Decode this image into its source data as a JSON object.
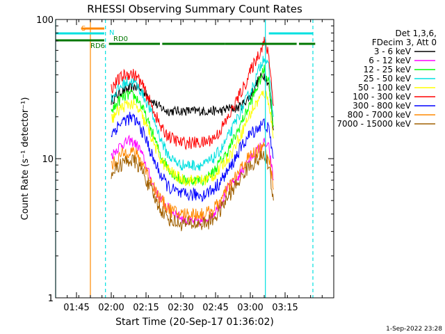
{
  "chart_data": {
    "type": "line",
    "title": "RHESSI Observing Summary Count Rates",
    "xlabel": "Start Time (20-Sep-17 01:36:02)",
    "ylabel": "Count Rate (s⁻¹ detector⁻¹)",
    "y_scale": "log",
    "ylim": [
      1,
      100
    ],
    "xlim_minutes": [
      0,
      120
    ],
    "y_ticks": [
      "1",
      "10",
      "100"
    ],
    "x_ticks": [
      {
        "label": "01:45",
        "minute": 9
      },
      {
        "label": "02:00",
        "minute": 24
      },
      {
        "label": "02:15",
        "minute": 39
      },
      {
        "label": "02:30",
        "minute": 54
      },
      {
        "label": "02:45",
        "minute": 69
      },
      {
        "label": "03:00",
        "minute": 84
      },
      {
        "label": "03:15",
        "minute": 99
      }
    ],
    "legend": {
      "header": [
        "Det 1,3,6,",
        "FDecim 3, Att 0"
      ],
      "placement": "right"
    },
    "flags": [
      {
        "label": "S",
        "color": "#ff8800",
        "start_min": 11,
        "end_min": 21
      },
      {
        "label": "N",
        "color": "#00e0e0",
        "start_min": 0,
        "end_min": 21
      },
      {
        "label": "N",
        "color": "#00e0e0",
        "start_min": 92,
        "end_min": 111
      },
      {
        "label": "RD0",
        "color": "#007700",
        "start_min": 23,
        "end_min": 45
      },
      {
        "label": "RD0",
        "color": "#007700",
        "start_min": 46,
        "end_min": 73
      },
      {
        "label": "RD0",
        "color": "#007700",
        "start_min": 73,
        "end_min": 104
      },
      {
        "label": "RD0",
        "color": "#007700",
        "start_min": 105,
        "end_min": 112
      },
      {
        "label": "RD6",
        "color": "#007700",
        "start_min": 0,
        "end_min": 21
      }
    ],
    "flag_labels": [
      {
        "text": "S",
        "color": "#ff8800"
      },
      {
        "text": "N",
        "color": "#00e0e0"
      },
      {
        "text": "RD0",
        "color": "#007700"
      },
      {
        "text": "RD6",
        "color": "#007700"
      }
    ],
    "vlines": [
      {
        "minute": 15,
        "color": "#ff8800",
        "style": "solid"
      },
      {
        "minute": 21.5,
        "color": "#00e0e0",
        "style": "dashed"
      },
      {
        "minute": 90.5,
        "color": "#00e0e0",
        "style": "solid"
      },
      {
        "minute": 111,
        "color": "#00e0e0",
        "style": "dashed"
      },
      {
        "minute": 0,
        "color": "#00e0e0",
        "style": "solid"
      }
    ],
    "x_minutes": [
      24,
      26,
      28,
      30,
      32,
      34,
      36,
      38,
      40,
      42,
      44,
      46,
      48,
      50,
      52,
      54,
      56,
      58,
      60,
      62,
      64,
      66,
      68,
      70,
      72,
      74,
      76,
      78,
      80,
      82,
      84,
      86,
      88,
      90,
      92,
      94
    ],
    "series": [
      {
        "name": "3 - 6 keV",
        "color": "#000000",
        "values": [
          26,
          28,
          30,
          31,
          32,
          33,
          32,
          30,
          28,
          26,
          24,
          23,
          22,
          22,
          22,
          22,
          22,
          22,
          22,
          22,
          22,
          22,
          22,
          22,
          22,
          23,
          23,
          23,
          24,
          26,
          28,
          33,
          38,
          40,
          34,
          16
        ]
      },
      {
        "name": "6 - 12 keV",
        "color": "#ff00ff",
        "values": [
          10.5,
          11.5,
          12.5,
          13,
          13.5,
          13,
          12,
          10,
          8,
          6.5,
          5.5,
          5,
          4.5,
          4.2,
          4,
          3.8,
          3.6,
          3.5,
          3.5,
          3.5,
          3.6,
          3.8,
          4,
          4.5,
          5,
          6,
          6.5,
          7,
          8,
          9,
          10,
          11,
          12,
          13,
          12,
          7
        ]
      },
      {
        "name": "12 - 25 keV",
        "color": "#00ff00",
        "values": [
          22,
          24,
          27,
          28,
          29,
          28,
          26,
          22,
          18,
          15,
          12,
          10,
          9,
          8,
          7.5,
          7,
          7,
          7,
          7,
          7,
          7,
          7.5,
          8,
          9,
          10,
          11,
          13,
          15,
          18,
          21,
          25,
          30,
          36,
          44,
          36,
          17
        ]
      },
      {
        "name": "25 - 50 keV",
        "color": "#00e0e0",
        "values": [
          27,
          30,
          33,
          35,
          36,
          35,
          32,
          28,
          24,
          20,
          16,
          13,
          11,
          10,
          9.5,
          9,
          9,
          9,
          9,
          9,
          9,
          9.5,
          10,
          11,
          12,
          14,
          16,
          19,
          22,
          26,
          30,
          36,
          45,
          55,
          44,
          20
        ]
      },
      {
        "name": "50 - 100 keV",
        "color": "#ffff00",
        "values": [
          19,
          21,
          23,
          24,
          25,
          24,
          22,
          19,
          16,
          13.5,
          11,
          9.5,
          8.5,
          8,
          7.5,
          7.2,
          7,
          7,
          7,
          7,
          7,
          7.2,
          7.5,
          8,
          9,
          10,
          11,
          13,
          15,
          18,
          21,
          24,
          27,
          30,
          26,
          14
        ]
      },
      {
        "name": "100 - 300 keV",
        "color": "#ff0000",
        "values": [
          32,
          35,
          38,
          40,
          41,
          40,
          37,
          32,
          27,
          23,
          19,
          16,
          15,
          14,
          13.5,
          13,
          13,
          13,
          13,
          13,
          13,
          13.5,
          14,
          15,
          17,
          19,
          22,
          26,
          30,
          35,
          42,
          50,
          58,
          70,
          55,
          24
        ]
      },
      {
        "name": "300 - 800 keV",
        "color": "#0000ff",
        "values": [
          15,
          16.5,
          18,
          19,
          19.5,
          19,
          17.5,
          15,
          12.5,
          10,
          8.5,
          7.3,
          6.5,
          6,
          5.8,
          5.5,
          5.5,
          5.5,
          5.5,
          5.5,
          5.5,
          5.8,
          6,
          6.5,
          7.2,
          8,
          9,
          10.5,
          12,
          13.5,
          15,
          16,
          17,
          18,
          16,
          10
        ]
      },
      {
        "name": "800 - 7000 keV",
        "color": "#ff8800",
        "values": [
          9,
          9.5,
          10.5,
          11,
          11.5,
          11,
          10,
          9,
          7.5,
          6.5,
          5.5,
          4.9,
          4.5,
          4.2,
          4.1,
          4,
          4,
          4,
          4,
          4,
          4,
          4.1,
          4.3,
          4.7,
          5.2,
          6,
          6.7,
          7.5,
          8.5,
          9.5,
          10.5,
          11,
          11.5,
          12,
          10.5,
          6
        ]
      },
      {
        "name": "7000 - 15000 keV",
        "color": "#a06000",
        "values": [
          8,
          8.5,
          9,
          9.5,
          9.8,
          9.5,
          8.8,
          7.8,
          6.5,
          5.5,
          4.7,
          4.2,
          3.8,
          3.6,
          3.5,
          3.4,
          3.4,
          3.4,
          3.4,
          3.4,
          3.4,
          3.5,
          3.7,
          4,
          4.5,
          5.2,
          5.8,
          6.5,
          7.3,
          8.2,
          9,
          9.5,
          10,
          10.5,
          9,
          5
        ]
      }
    ]
  },
  "footer": {
    "timestamp": "1-Sep-2022 23:28"
  }
}
